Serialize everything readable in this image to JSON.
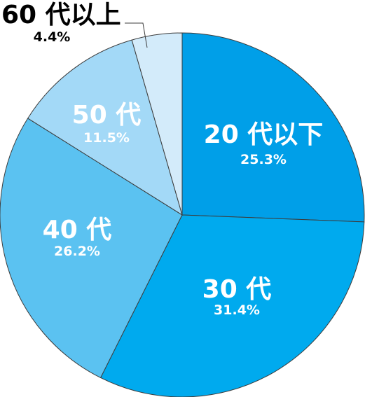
{
  "chart_data": {
    "type": "pie",
    "title": "",
    "start": "12 o'clock",
    "direction": "clockwise",
    "slices": [
      {
        "label": "20 代以下",
        "value": 25.3,
        "value_label": "25.3%",
        "color": "#009fe8"
      },
      {
        "label": "30 代",
        "value": 31.4,
        "value_label": "31.4%",
        "color": "#00aaee"
      },
      {
        "label": "40 代",
        "value": 26.2,
        "value_label": "26.2%",
        "color": "#5bc2f1"
      },
      {
        "label": "50 代",
        "value": 11.5,
        "value_label": "11.5%",
        "color": "#a3d9f7"
      },
      {
        "label": "60 代以上",
        "value": 4.4,
        "value_label": "4.4%",
        "color": "#d3ebfa",
        "label_outside": true
      }
    ]
  }
}
